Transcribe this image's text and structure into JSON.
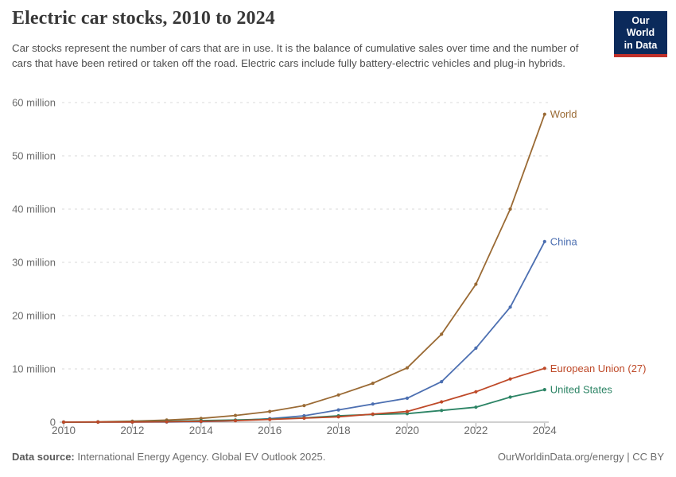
{
  "header": {
    "title": "Electric car stocks, 2010 to 2024",
    "subtitle": "Car stocks represent the number of cars that are in use. It is the balance of cumulative sales over time and the number of cars that have been retired or taken off the road. Electric cars include fully battery-electric vehicles and plug-in hybrids."
  },
  "logo": {
    "line1": "Our World",
    "line2": "in Data",
    "bg_color": "#0b2a5b",
    "stripe_color": "#c0302a"
  },
  "chart_data": {
    "type": "line",
    "title": "Electric car stocks, 2010 to 2024",
    "unit": "million electric cars in use",
    "x": [
      2010,
      2011,
      2012,
      2013,
      2014,
      2015,
      2016,
      2017,
      2018,
      2019,
      2020,
      2021,
      2022,
      2023,
      2024
    ],
    "series": [
      {
        "name": "World",
        "color": "#9a6a34",
        "values": [
          0.02,
          0.06,
          0.18,
          0.39,
          0.7,
          1.26,
          2.0,
          3.1,
          5.1,
          7.3,
          10.2,
          16.5,
          25.9,
          40.0,
          57.8
        ]
      },
      {
        "name": "China",
        "color": "#4c6fb1",
        "values": [
          0.0,
          0.01,
          0.02,
          0.03,
          0.09,
          0.3,
          0.65,
          1.2,
          2.3,
          3.4,
          4.5,
          7.6,
          13.9,
          21.6,
          33.9
        ]
      },
      {
        "name": "United States",
        "color": "#2c8465",
        "values": [
          0.0,
          0.02,
          0.07,
          0.17,
          0.29,
          0.4,
          0.56,
          0.8,
          1.2,
          1.45,
          1.6,
          2.2,
          2.8,
          4.7,
          6.1
        ]
      },
      {
        "name": "European Union (27)",
        "color": "#be4928",
        "values": [
          0.0,
          0.01,
          0.03,
          0.07,
          0.15,
          0.29,
          0.5,
          0.75,
          1.0,
          1.5,
          2.0,
          3.8,
          5.7,
          8.1,
          10.1
        ]
      }
    ],
    "ylim": [
      0,
      60
    ],
    "y_ticks": [
      {
        "value": 0,
        "label": "0"
      },
      {
        "value": 10,
        "label": "10 million"
      },
      {
        "value": 20,
        "label": "20 million"
      },
      {
        "value": 30,
        "label": "30 million"
      },
      {
        "value": 40,
        "label": "40 million"
      },
      {
        "value": 50,
        "label": "50 million"
      },
      {
        "value": 60,
        "label": "60 million"
      }
    ],
    "x_ticks": [
      2010,
      2012,
      2014,
      2016,
      2018,
      2020,
      2022,
      2024
    ],
    "grid": "horizontal-dashed",
    "legend_position": "end-of-line-labels"
  },
  "footer": {
    "source_label": "Data source:",
    "source_text": "International Energy Agency. Global EV Outlook 2025.",
    "url": "OurWorldinData.org/energy",
    "separator": " | ",
    "license": "CC BY"
  }
}
